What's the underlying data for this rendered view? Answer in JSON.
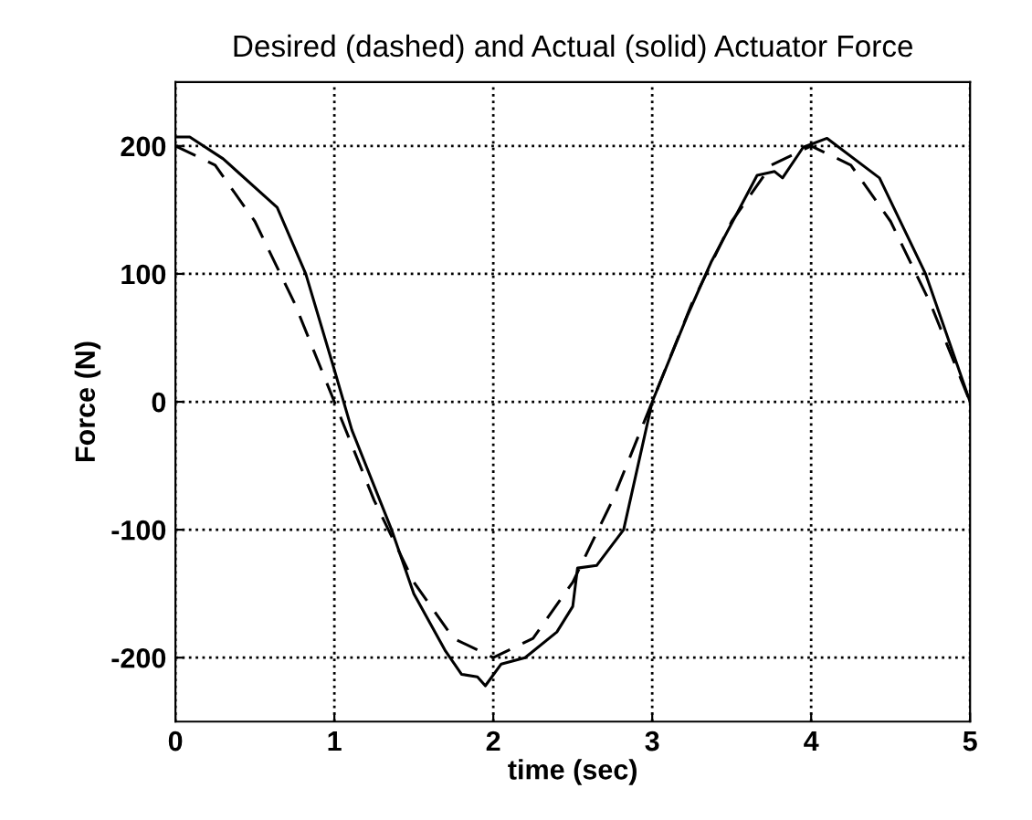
{
  "chart_data": {
    "type": "line",
    "title": "Desired (dashed) and Actual (solid) Actuator Force",
    "xlabel": "time (sec)",
    "ylabel": "Force (N)",
    "xlim": [
      0,
      5
    ],
    "ylim": [
      -250,
      250
    ],
    "xticks": [
      0,
      1,
      2,
      3,
      4,
      5
    ],
    "yticks": [
      -200,
      -100,
      0,
      100,
      200
    ],
    "grid": true,
    "series": [
      {
        "color": "#000000",
        "line_style": "dashed",
        "x": [
          0,
          0.25,
          0.5,
          0.75,
          1,
          1.25,
          1.5,
          1.75,
          2,
          2.25,
          2.5,
          2.75,
          3,
          3.25,
          3.5,
          3.75,
          4,
          4.25,
          4.5,
          4.75,
          5
        ],
        "values": [
          200,
          185,
          141,
          77,
          0,
          -77,
          -141,
          -185,
          -200,
          -185,
          -141,
          -77,
          0,
          77,
          141,
          185,
          200,
          185,
          141,
          77,
          0
        ]
      },
      {
        "color": "#000000",
        "line_style": "solid",
        "x": [
          0,
          0.09,
          0.3,
          0.64,
          0.82,
          1.0,
          1.11,
          1.36,
          1.5,
          1.7,
          1.8,
          1.9,
          1.95,
          2.05,
          2.2,
          2.4,
          2.5,
          2.53,
          2.65,
          2.82,
          3.0,
          3.22,
          3.37,
          3.66,
          3.77,
          3.82,
          3.95,
          4.1,
          4.43,
          4.72,
          5
        ],
        "values": [
          207,
          207,
          190,
          152,
          100,
          25,
          -22,
          -100,
          -150,
          -195,
          -213,
          -215,
          -222,
          -205,
          -200,
          -180,
          -160,
          -130,
          -128,
          -100,
          0,
          67,
          109,
          177,
          180,
          175,
          199,
          206,
          175,
          100,
          0
        ]
      }
    ]
  }
}
